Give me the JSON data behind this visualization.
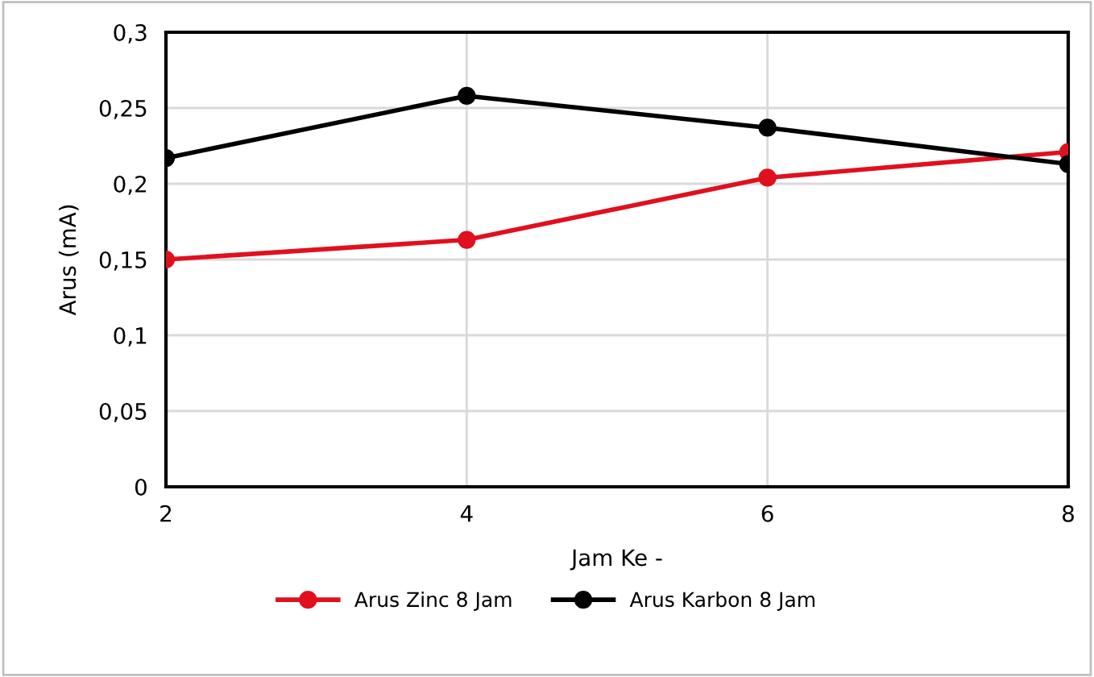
{
  "chart_data": {
    "type": "line",
    "xlabel": "Jam Ke -",
    "ylabel": "Arus (mA)",
    "x": [
      2,
      4,
      6,
      8
    ],
    "series": [
      {
        "name": "Arus Zinc 8 Jam",
        "color": "#e0101e",
        "values": [
          0.15,
          0.163,
          0.204,
          0.221
        ]
      },
      {
        "name": "Arus Karbon 8 Jam",
        "color": "#000000",
        "values": [
          0.217,
          0.258,
          0.237,
          0.213
        ]
      }
    ],
    "xlim": [
      2,
      8
    ],
    "xticks": [
      2,
      4,
      6,
      8
    ],
    "ylim": [
      0,
      0.3
    ],
    "yticks": [
      {
        "value": 0,
        "label": "0"
      },
      {
        "value": 0.05,
        "label": "0,05"
      },
      {
        "value": 0.1,
        "label": "0,1"
      },
      {
        "value": 0.15,
        "label": "0,15"
      },
      {
        "value": 0.2,
        "label": "0,2"
      },
      {
        "value": 0.25,
        "label": "0,25"
      },
      {
        "value": 0.3,
        "label": "0,3"
      }
    ],
    "grid": true,
    "legend": "bottom",
    "marker": "circle",
    "line_style": "solid"
  }
}
